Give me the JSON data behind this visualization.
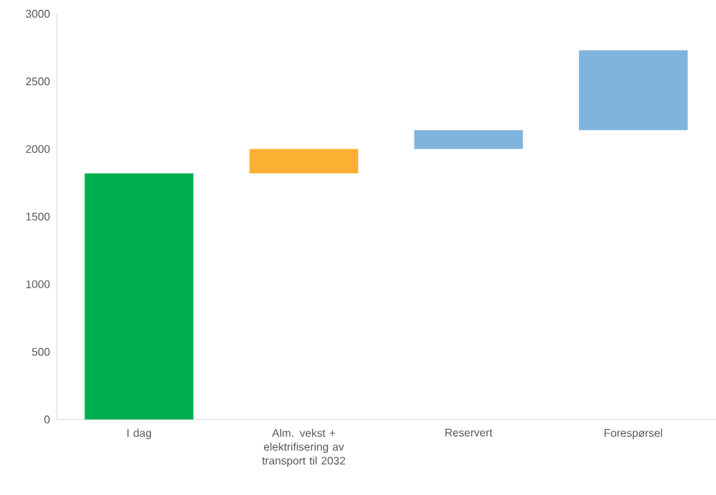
{
  "chart_data": {
    "type": "bar",
    "categories": [
      "I dag",
      "Alm. vekst + elektrifisering av transport til 2032",
      "Reservert",
      "Forespørsel"
    ],
    "base": [
      0,
      1820,
      2000,
      2140
    ],
    "values": [
      1820,
      180,
      140,
      590
    ],
    "colors": [
      "#00b050",
      "#fbb034",
      "#7fb5dc",
      "#7fb5dc"
    ],
    "ylim": [
      0,
      3000
    ],
    "yticks": [
      0,
      500,
      1000,
      1500,
      2000,
      2500,
      3000
    ]
  }
}
